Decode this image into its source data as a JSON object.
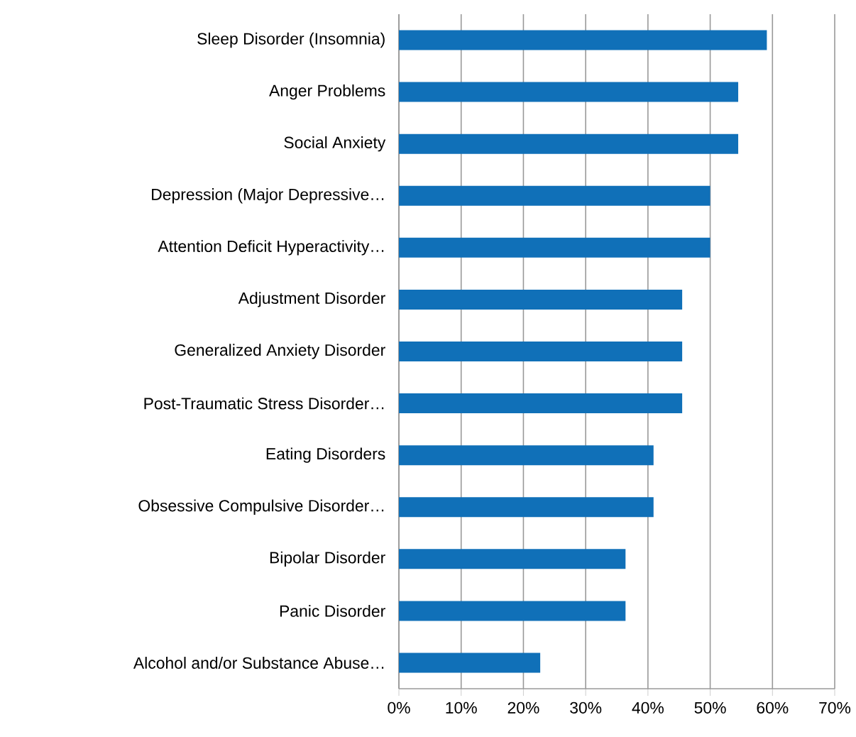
{
  "chart_data": {
    "type": "bar",
    "orientation": "horizontal",
    "categories": [
      "Sleep Disorder (Insomnia)",
      "Anger Problems",
      "Social Anxiety",
      "Depression (Major Depressive…",
      "Attention Deficit Hyperactivity…",
      "Adjustment Disorder",
      "Generalized Anxiety Disorder",
      "Post-Traumatic Stress Disorder…",
      "Eating Disorders",
      "Obsessive Compulsive Disorder…",
      "Bipolar Disorder",
      "Panic Disorder",
      "Alcohol and/or Substance Abuse…"
    ],
    "values": [
      59.1,
      54.5,
      54.5,
      50,
      50,
      45.5,
      45.5,
      45.5,
      40.9,
      40.9,
      36.4,
      36.4,
      22.7
    ],
    "color": "#1070b8",
    "xlim": [
      0,
      70
    ],
    "xticks": [
      {
        "value": 0,
        "label": "0%"
      },
      {
        "value": 10,
        "label": "10%"
      },
      {
        "value": 20,
        "label": "20%"
      },
      {
        "value": 30,
        "label": "30%"
      },
      {
        "value": 40,
        "label": "40%"
      },
      {
        "value": 50,
        "label": "50%"
      },
      {
        "value": 60,
        "label": "60%"
      },
      {
        "value": 70,
        "label": "70%"
      }
    ],
    "grid": "x"
  }
}
